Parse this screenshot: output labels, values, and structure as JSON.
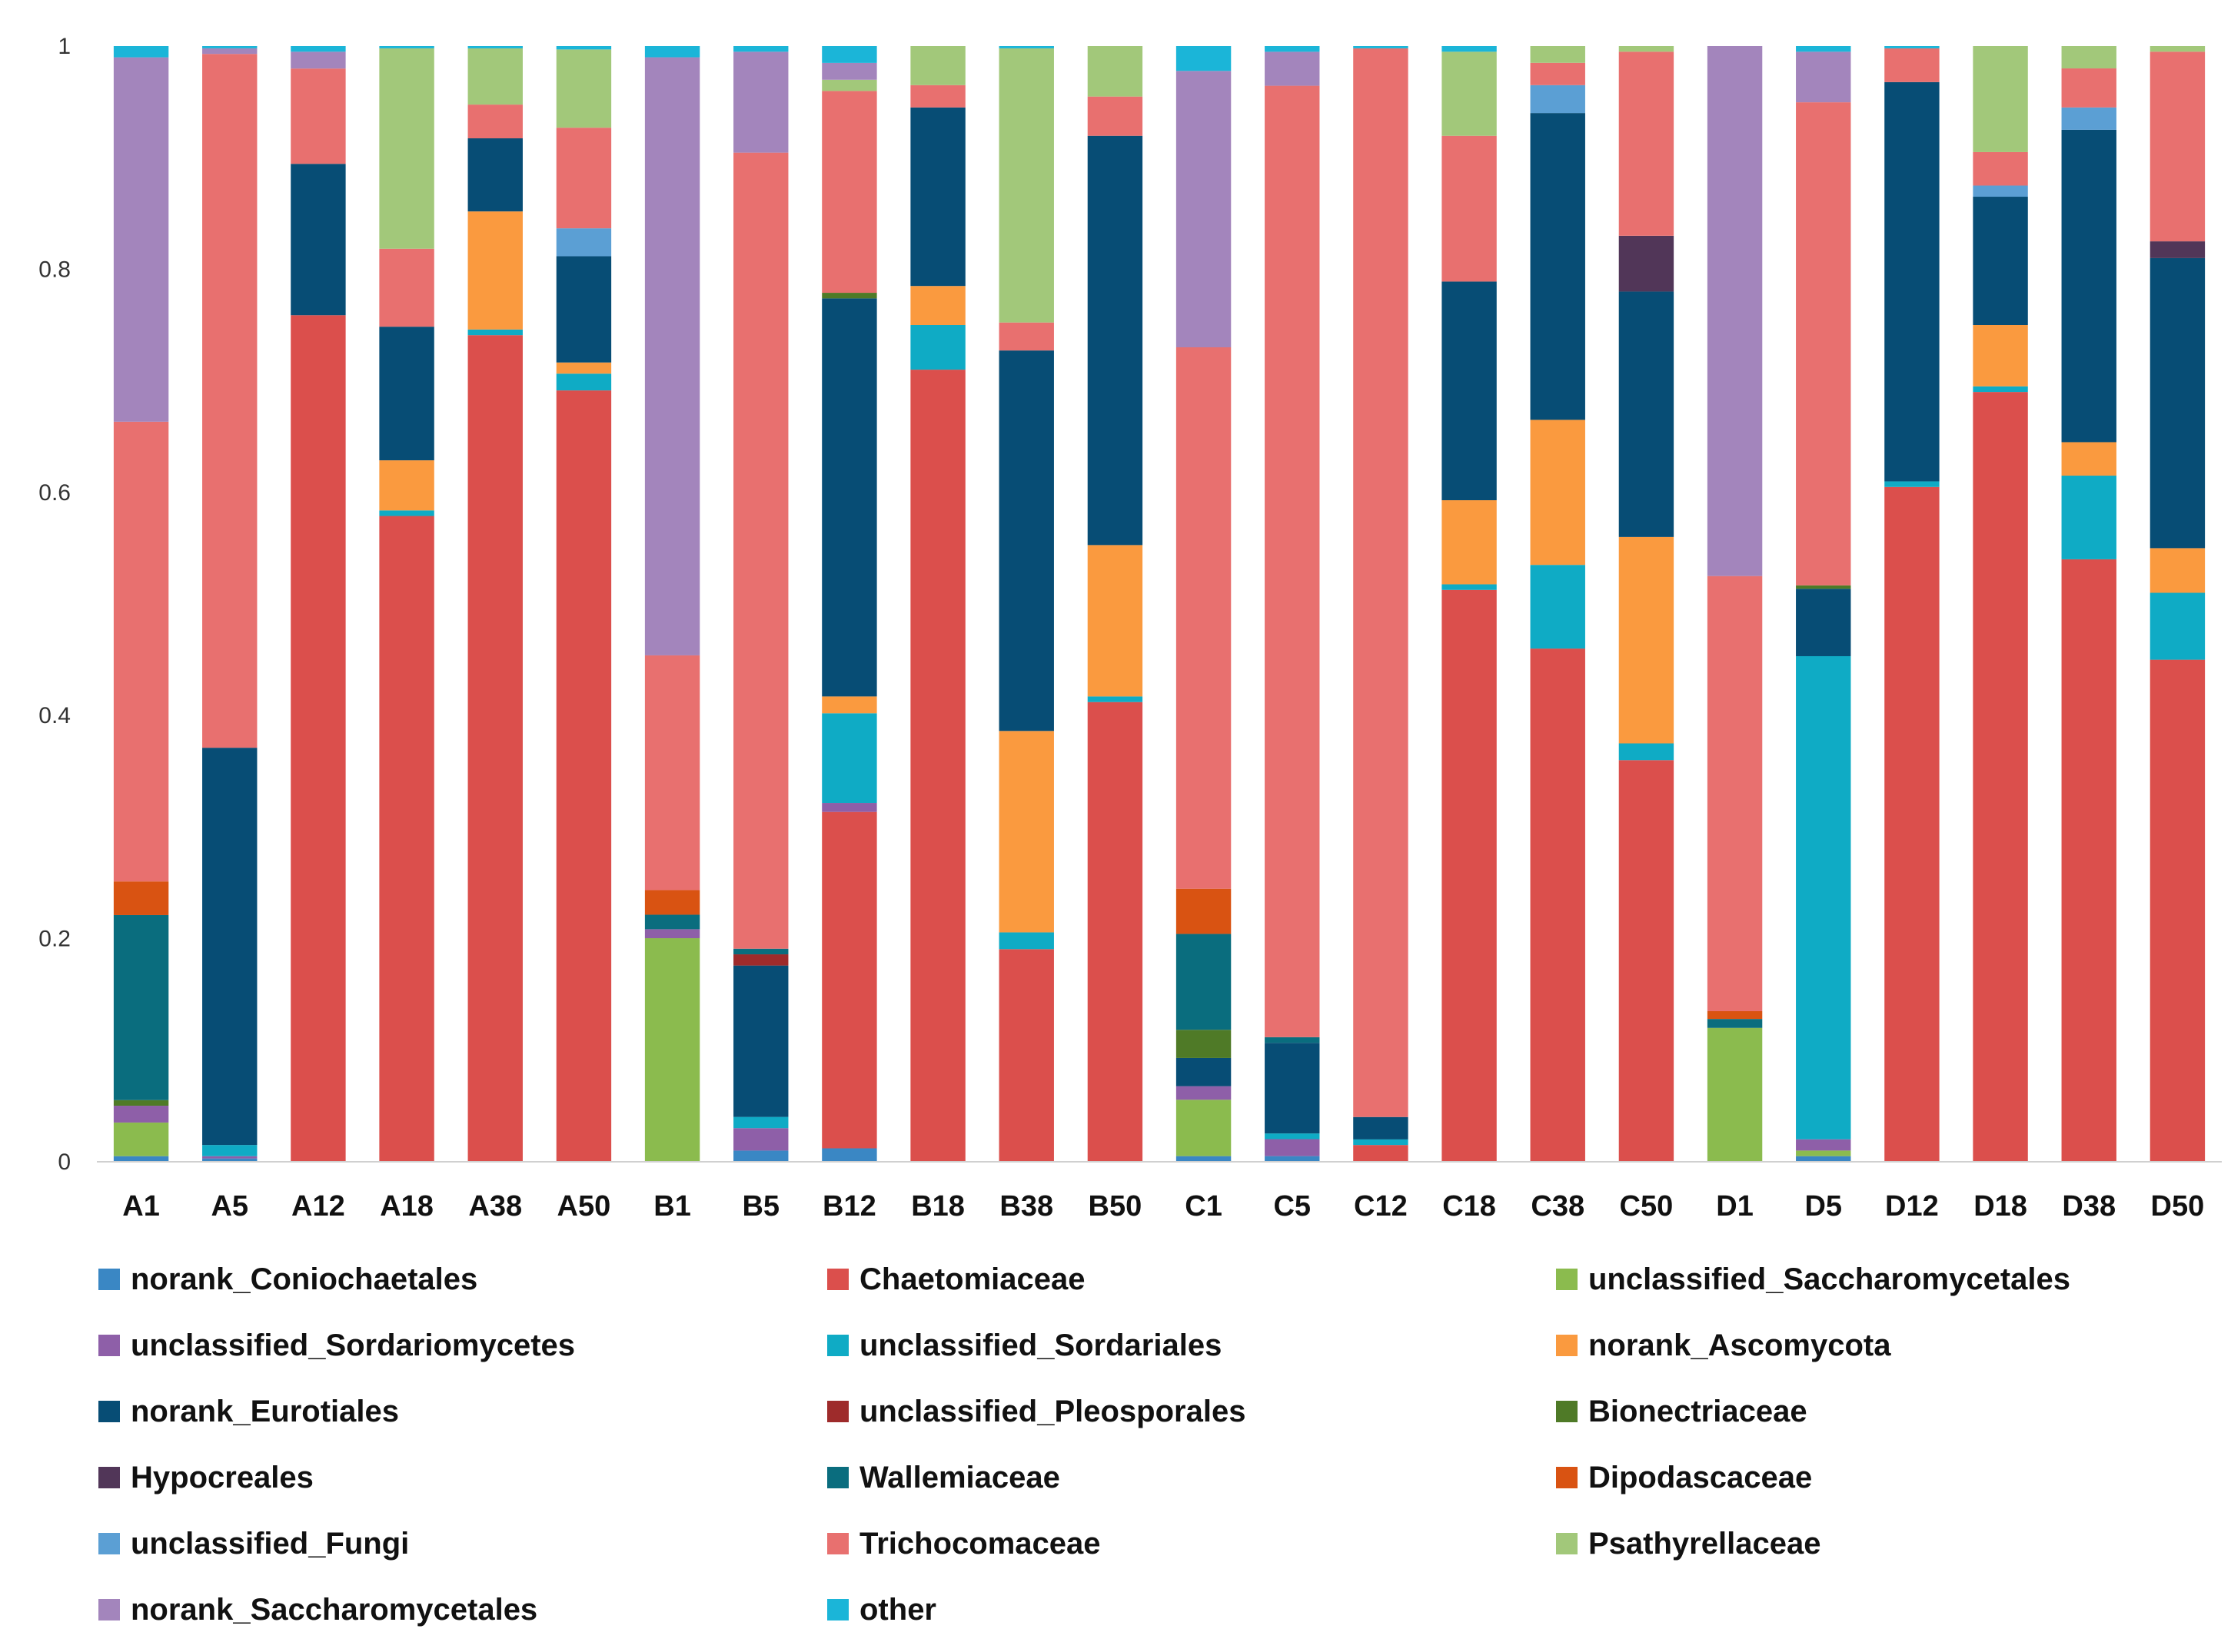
{
  "chart_data": {
    "type": "stacked-bar",
    "title": "",
    "xlabel": "",
    "ylabel": "",
    "ylim": [
      0,
      1
    ],
    "yticks": [
      0,
      0.2,
      0.4,
      0.6,
      0.8,
      1
    ],
    "ytick_labels": [
      "0",
      "0.2",
      "0.4",
      "0.6",
      "0.8",
      "1"
    ],
    "grid": false,
    "legend_position": "bottom",
    "categories": [
      "A1",
      "A5",
      "A12",
      "A18",
      "A38",
      "A50",
      "B1",
      "B5",
      "B12",
      "B18",
      "B38",
      "B50",
      "C1",
      "C5",
      "C12",
      "C18",
      "C38",
      "C50",
      "D1",
      "D5",
      "D12",
      "D18",
      "D38",
      "D50"
    ],
    "series": [
      {
        "name": "norank_Coniochaetales",
        "color": "#3A87C4",
        "values": [
          0.005,
          0.003,
          0,
          0,
          0,
          0,
          0,
          0.01,
          0.012,
          0,
          0,
          0,
          0.005,
          0.005,
          0,
          0,
          0,
          0,
          0,
          0.005,
          0,
          0,
          0,
          0
        ]
      },
      {
        "name": "Chaetomiaceae",
        "color": "#DB4F4C",
        "values": [
          0,
          0,
          0.755,
          0.58,
          0.735,
          0.69,
          0,
          0,
          0.3,
          0.71,
          0.19,
          0.41,
          0,
          0,
          0.015,
          0.51,
          0.46,
          0.36,
          0,
          0,
          0.6,
          0.69,
          0.54,
          0.45
        ]
      },
      {
        "name": "unclassified_Saccharomycetales",
        "color": "#8BBB4E",
        "values": [
          0.03,
          0,
          0,
          0,
          0,
          0,
          0.2,
          0,
          0,
          0,
          0,
          0,
          0.05,
          0,
          0,
          0,
          0,
          0,
          0.12,
          0.005,
          0,
          0,
          0,
          0
        ]
      },
      {
        "name": "unclassified_Sordariomycetes",
        "color": "#8E5FA8",
        "values": [
          0.015,
          0.002,
          0,
          0,
          0,
          0,
          0.008,
          0.02,
          0.008,
          0,
          0,
          0,
          0.012,
          0.015,
          0,
          0,
          0,
          0,
          0,
          0.01,
          0,
          0,
          0,
          0
        ]
      },
      {
        "name": "unclassified_Sordariales",
        "color": "#0FABC5",
        "values": [
          0,
          0.01,
          0,
          0.005,
          0.005,
          0.015,
          0,
          0.01,
          0.08,
          0.04,
          0.015,
          0.005,
          0,
          0.005,
          0.005,
          0.005,
          0.075,
          0.015,
          0,
          0.43,
          0.005,
          0.005,
          0.075,
          0.06
        ]
      },
      {
        "name": "norank_Ascomycota",
        "color": "#FA9A3F",
        "values": [
          0,
          0,
          0,
          0.045,
          0.105,
          0.01,
          0,
          0,
          0.015,
          0.035,
          0.18,
          0.135,
          0,
          0,
          0,
          0.075,
          0.13,
          0.185,
          0,
          0,
          0,
          0.055,
          0.03,
          0.04
        ]
      },
      {
        "name": "norank_Eurotiales",
        "color": "#074D75",
        "values": [
          0,
          0.355,
          0.135,
          0.12,
          0.065,
          0.095,
          0,
          0.135,
          0.355,
          0.16,
          0.34,
          0.365,
          0.025,
          0.08,
          0.02,
          0.195,
          0.275,
          0.22,
          0,
          0.06,
          0.355,
          0.115,
          0.28,
          0.26
        ]
      },
      {
        "name": "unclassified_Pleosporales",
        "color": "#9E2B2B",
        "values": [
          0,
          0,
          0,
          0,
          0,
          0,
          0,
          0.01,
          0,
          0,
          0,
          0,
          0,
          0,
          0,
          0,
          0,
          0,
          0,
          0,
          0,
          0,
          0,
          0
        ]
      },
      {
        "name": "Bionectriaceae",
        "color": "#4F7A27",
        "values": [
          0.005,
          0,
          0,
          0,
          0,
          0,
          0,
          0,
          0.005,
          0,
          0,
          0,
          0.025,
          0,
          0,
          0,
          0,
          0,
          0,
          0.003,
          0,
          0,
          0,
          0
        ]
      },
      {
        "name": "Hypocreales",
        "color": "#513658",
        "values": [
          0,
          0,
          0,
          0,
          0,
          0,
          0,
          0,
          0,
          0,
          0,
          0,
          0,
          0,
          0,
          0,
          0,
          0.05,
          0,
          0,
          0,
          0,
          0,
          0.015
        ]
      },
      {
        "name": "Wallemiaceae",
        "color": "#0A6D7E",
        "values": [
          0.165,
          0,
          0,
          0,
          0,
          0,
          0.013,
          0.005,
          0,
          0,
          0,
          0,
          0.085,
          0.005,
          0,
          0,
          0,
          0,
          0.008,
          0,
          0,
          0,
          0,
          0
        ]
      },
      {
        "name": "Dipodascaceae",
        "color": "#D95312",
        "values": [
          0.03,
          0,
          0,
          0,
          0,
          0,
          0.022,
          0,
          0,
          0,
          0,
          0,
          0.04,
          0,
          0,
          0,
          0,
          0,
          0.007,
          0,
          0,
          0,
          0,
          0
        ]
      },
      {
        "name": "unclassified_Fungi",
        "color": "#5B9FD4",
        "values": [
          0,
          0,
          0,
          0,
          0,
          0.025,
          0,
          0,
          0,
          0,
          0,
          0,
          0,
          0,
          0,
          0,
          0.025,
          0,
          0,
          0,
          0,
          0.01,
          0.02,
          0
        ]
      },
      {
        "name": "Trichocomaceae",
        "color": "#E8706F",
        "values": [
          0.41,
          0.62,
          0.085,
          0.07,
          0.03,
          0.09,
          0.21,
          0.71,
          0.18,
          0.02,
          0.025,
          0.035,
          0.48,
          0.84,
          0.955,
          0.13,
          0.02,
          0.165,
          0.39,
          0.43,
          0.03,
          0.03,
          0.035,
          0.17
        ]
      },
      {
        "name": "Psathyrellaceae",
        "color": "#A2C87A",
        "values": [
          0,
          0,
          0,
          0.18,
          0.05,
          0.07,
          0,
          0,
          0.01,
          0.035,
          0.245,
          0.045,
          0,
          0,
          0,
          0.075,
          0.015,
          0.005,
          0,
          0,
          0,
          0.095,
          0.02,
          0.005
        ]
      },
      {
        "name": "norank_Saccharomycetales",
        "color": "#A385BC",
        "values": [
          0.325,
          0.005,
          0.015,
          0,
          0,
          0,
          0.535,
          0.09,
          0.015,
          0,
          0,
          0,
          0.245,
          0.03,
          0,
          0,
          0,
          0,
          0.475,
          0.045,
          0,
          0,
          0,
          0
        ]
      },
      {
        "name": "other",
        "color": "#1BB5D8",
        "values": [
          0.01,
          0.002,
          0.005,
          0.002,
          0.002,
          0.003,
          0.01,
          0.005,
          0.015,
          0,
          0.002,
          0,
          0.022,
          0.005,
          0.002,
          0.005,
          0,
          0,
          0,
          0.005,
          0.002,
          0,
          0,
          0
        ]
      }
    ]
  }
}
